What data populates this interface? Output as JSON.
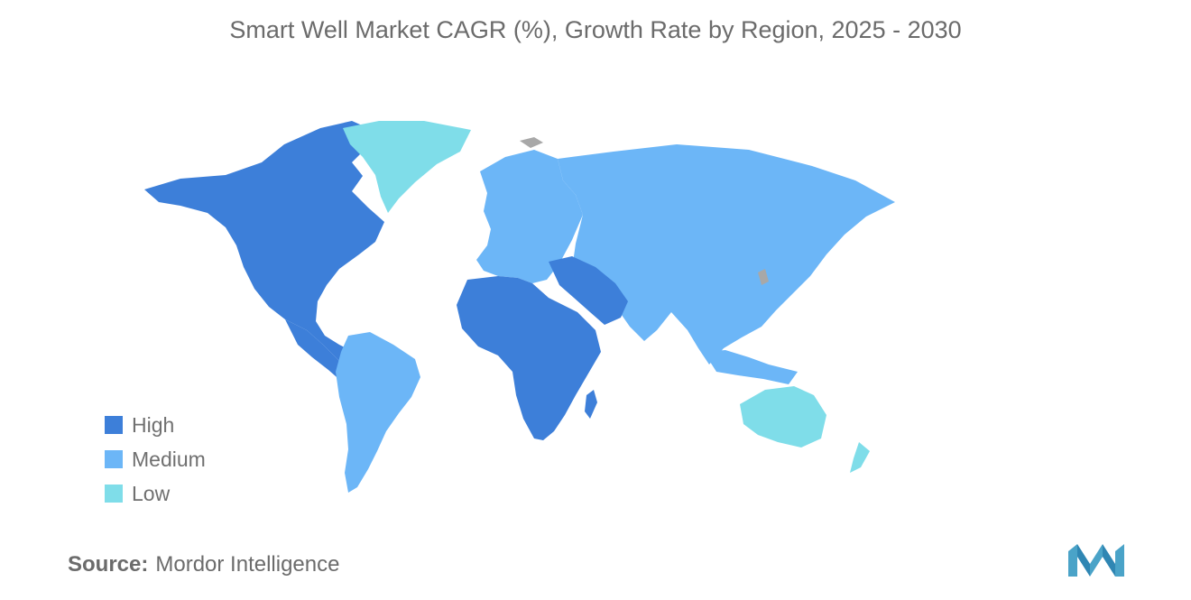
{
  "title": "Smart Well Market CAGR (%), Growth Rate by Region, 2025 - 2030",
  "legend": {
    "items": [
      {
        "label": "High",
        "color": "#3d7fd9"
      },
      {
        "label": "Medium",
        "color": "#6cb6f7"
      },
      {
        "label": "Low",
        "color": "#7fdde9"
      }
    ]
  },
  "regions": {
    "north_america": "High",
    "middle_east_africa": "High",
    "south_america": "Medium",
    "europe": "Medium",
    "asia_pacific": "Medium",
    "greenland": "Low",
    "oceania": "Low"
  },
  "source": {
    "label": "Source:",
    "value": "Mordor Intelligence"
  },
  "colors": {
    "high": "#3d7fd9",
    "medium": "#6cb6f7",
    "low": "#7fdde9",
    "no_data": "#a8a8a8",
    "logo": "#4aa3c8"
  }
}
